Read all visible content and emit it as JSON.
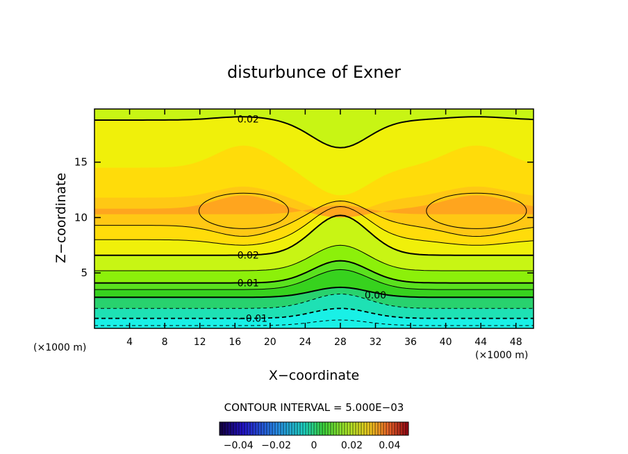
{
  "chart_data": {
    "type": "heatmap",
    "title": "disturbunce of Exner",
    "xlabel": "X−coordinate",
    "ylabel": "Z−coordinate",
    "x_unit_left": "(×1000 m)",
    "x_unit_right": "(×1000 m)",
    "xlim": [
      0,
      50
    ],
    "ylim": [
      0,
      19.8
    ],
    "x_ticks": [
      4,
      8,
      12,
      16,
      20,
      24,
      28,
      32,
      36,
      40,
      44,
      48
    ],
    "y_ticks": [
      5,
      10,
      15
    ],
    "contour_interval_text": "CONTOUR INTERVAL = 5.000E−03",
    "contour_labels": [
      {
        "text": "0.02",
        "x": 17.5,
        "y": 18.9
      },
      {
        "text": "0.02",
        "x": 17.5,
        "y": 6.6
      },
      {
        "text": "0.01",
        "x": 17.5,
        "y": 4.1
      },
      {
        "text": "0.00",
        "x": 32.0,
        "y": 3.0
      },
      {
        "text": "−0.01",
        "x": 18.0,
        "y": 0.9
      }
    ],
    "colorbar": {
      "range": [
        -0.05,
        0.05
      ],
      "ticks": [
        "−0.04",
        "−0.02",
        "0",
        "0.02",
        "0.04"
      ]
    },
    "colors": {
      "field_low": "#19f0e6",
      "field_mid": "#37d21e",
      "field_high": "#ffa51e",
      "contour": "#000000"
    }
  }
}
